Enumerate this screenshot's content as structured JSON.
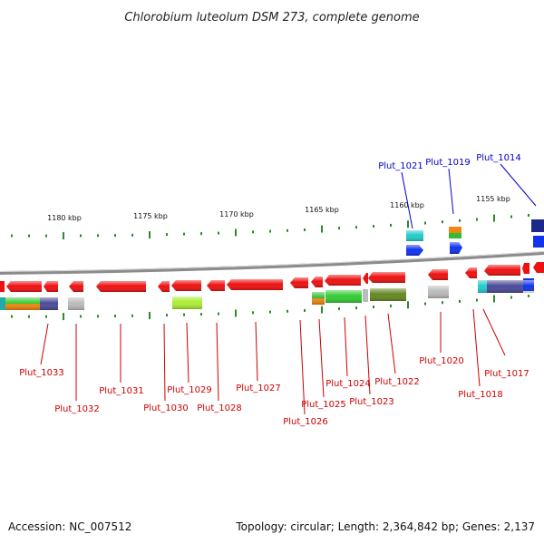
{
  "title": "Chlorobium luteolum DSM 273, complete genome",
  "footer": {
    "accession": "Accession: NC_007512",
    "summary": "Topology: circular; Length: 2,364,842 bp; Genes: 2,137"
  },
  "colors": {
    "backbone": "#8c8c8c",
    "cds": "#ee1111",
    "tick": "#2a8a2a",
    "label_reverse": "#cc0000",
    "label_forward": "#0000cc"
  },
  "scale": {
    "labels": [
      "1180 kbp",
      "1175 kbp",
      "1170 kbp",
      "1165 kbp",
      "1160 kbp",
      "1155 kbp"
    ]
  },
  "genes": {
    "reverse": [
      "Plut_1033",
      "Plut_1032",
      "Plut_1031",
      "Plut_1030",
      "Plut_1029",
      "Plut_1028",
      "Plut_1027",
      "Plut_1026",
      "Plut_1025",
      "Plut_1024",
      "Plut_1023",
      "Plut_1022",
      "Plut_1020",
      "Plut_1018",
      "Plut_1017"
    ],
    "forward": [
      "Plut_1021",
      "Plut_1019",
      "Plut_1014"
    ]
  }
}
